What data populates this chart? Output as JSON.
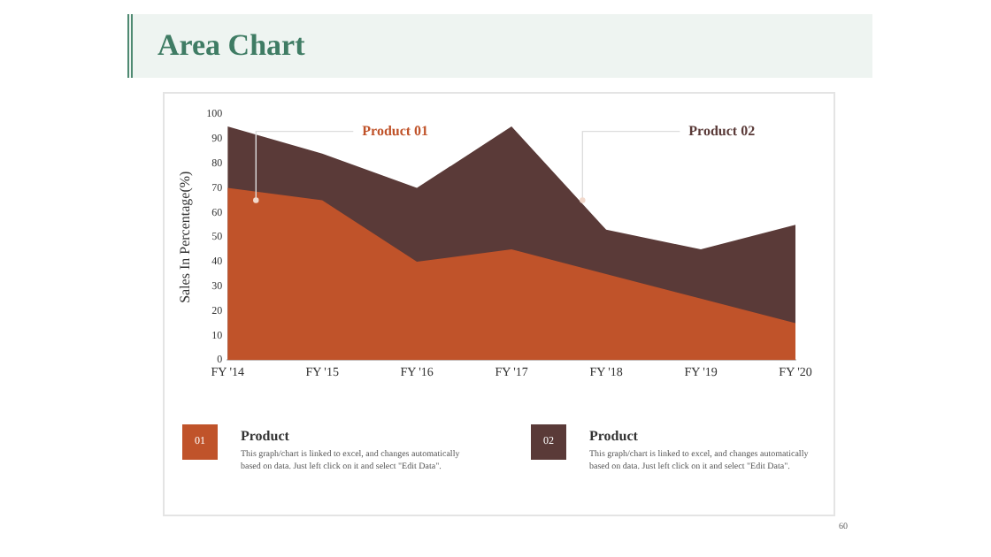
{
  "chart_data": {
    "type": "area",
    "title": "Area Chart",
    "ylabel": "Sales In Percentage(%)",
    "categories": [
      "FY '14",
      "FY '15",
      "FY '16",
      "FY '17",
      "FY '18",
      "FY '19",
      "FY '20"
    ],
    "series": [
      {
        "name": "Product 01",
        "color": "#c0532a",
        "values": [
          70,
          65,
          40,
          45,
          35,
          25,
          15
        ]
      },
      {
        "name": "Product 02",
        "color": "#5a3a38",
        "values": [
          95,
          84,
          70,
          95,
          53,
          45,
          55
        ]
      }
    ],
    "ylim": [
      0,
      100
    ],
    "yticks": [
      0,
      10,
      20,
      30,
      40,
      50,
      60,
      70,
      80,
      90,
      100
    ],
    "grid": false,
    "legend": false,
    "annotations": [
      "01",
      "Product",
      "This graph/chart is linked to excel, and changes automatically based on data. Just left click on it and select \"Edit Data\".",
      "02",
      "Product",
      "This graph/chart is linked to excel, and changes automatically based on data. Just left click on it and select \"Edit Data\".",
      "60"
    ]
  }
}
